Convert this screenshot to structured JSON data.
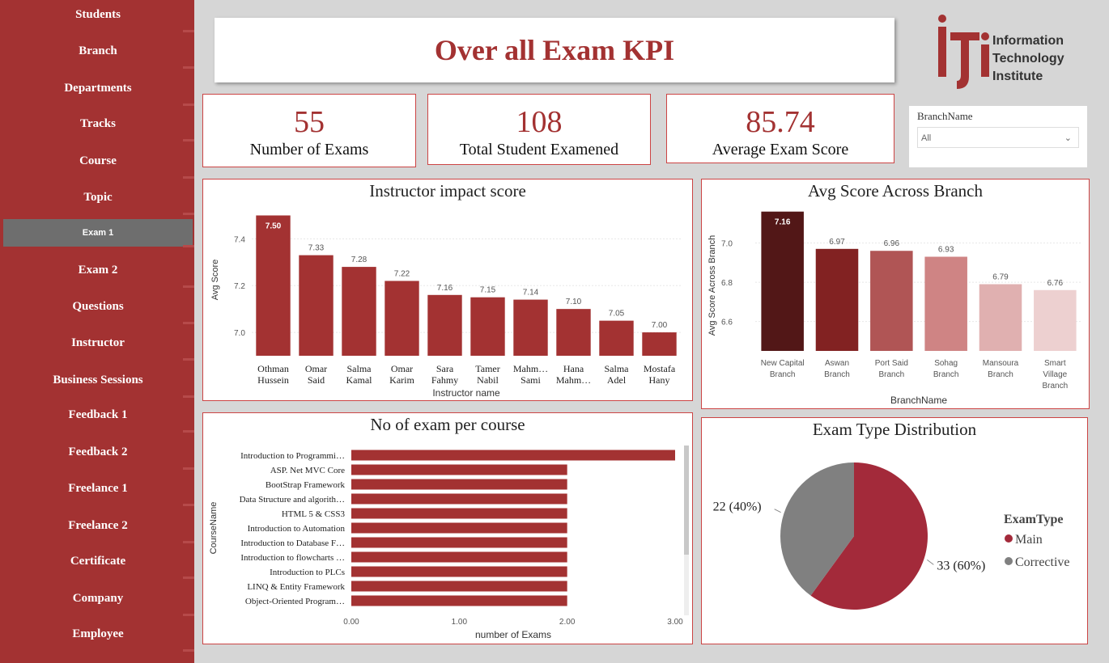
{
  "sidebar": {
    "items": [
      {
        "label": "Students",
        "active": false
      },
      {
        "label": "Branch",
        "active": false
      },
      {
        "label": "Departments",
        "active": false
      },
      {
        "label": "Tracks",
        "active": false
      },
      {
        "label": "Course",
        "active": false
      },
      {
        "label": "Topic",
        "active": false
      },
      {
        "label": "Exam 1",
        "active": true
      },
      {
        "label": "Exam 2",
        "active": false
      },
      {
        "label": "Questions",
        "active": false
      },
      {
        "label": "Instructor",
        "active": false
      },
      {
        "label": "Business Sessions",
        "active": false
      },
      {
        "label": "Feedback 1",
        "active": false
      },
      {
        "label": "Feedback 2",
        "active": false
      },
      {
        "label": "Freelance 1",
        "active": false
      },
      {
        "label": "Freelance 2",
        "active": false
      },
      {
        "label": "Certificate",
        "active": false
      },
      {
        "label": "Company",
        "active": false
      },
      {
        "label": "Employee",
        "active": false
      }
    ]
  },
  "header": {
    "title": "Over all Exam KPI"
  },
  "logo": {
    "line1": "Information",
    "line2": "Technology",
    "line3": "Institute",
    "mark": "iti"
  },
  "kpis": [
    {
      "value": "55",
      "label": "Number of Exams"
    },
    {
      "value": "108",
      "label": "Total Student Examened"
    },
    {
      "value": "85.74",
      "label": "Average Exam Score"
    }
  ],
  "slicer": {
    "label": "BranchName",
    "value": "All"
  },
  "colors": {
    "accent": "#a33232",
    "sidebar": "#a33232",
    "active": "#6e6e6e",
    "grey": "#808080"
  },
  "chart_data": [
    {
      "type": "bar",
      "title": "Instructor impact score",
      "xlabel": "Instructor name",
      "ylabel": "Avg Score",
      "ylim": [
        6.9,
        7.55
      ],
      "yticks": [
        "7.0",
        "7.2",
        "7.4"
      ],
      "ytick_values": [
        7.0,
        7.2,
        7.4
      ],
      "categories": [
        [
          "Othman",
          "Hussein"
        ],
        [
          "Omar",
          "Said"
        ],
        [
          "Salma",
          "Kamal"
        ],
        [
          "Omar",
          "Karim"
        ],
        [
          "Sara",
          "Fahmy"
        ],
        [
          "Tamer",
          "Nabil"
        ],
        [
          "Mahm…",
          "Sami"
        ],
        [
          "Hana",
          "Mahm…"
        ],
        [
          "Salma",
          "Adel"
        ],
        [
          "Mostafa",
          "Hany"
        ]
      ],
      "values": [
        7.5,
        7.33,
        7.28,
        7.22,
        7.16,
        7.15,
        7.14,
        7.1,
        7.05,
        7.0
      ],
      "labels": [
        "7.50",
        "7.33",
        "7.28",
        "7.22",
        "7.16",
        "7.15",
        "7.14",
        "7.10",
        "7.05",
        "7.00"
      ]
    },
    {
      "type": "bar",
      "title": "Avg Score Across Branch",
      "xlabel": "BranchName",
      "ylabel": "Avg Score Across Branch",
      "ylim": [
        6.45,
        7.2
      ],
      "yticks": [
        "6.6",
        "6.8",
        "7.0"
      ],
      "ytick_values": [
        6.6,
        6.8,
        7.0
      ],
      "categories": [
        [
          "New Capital",
          "Branch"
        ],
        [
          "Aswan",
          "Branch"
        ],
        [
          "Port Said",
          "Branch"
        ],
        [
          "Sohag",
          "Branch"
        ],
        [
          "Mansoura",
          "Branch"
        ],
        [
          "Smart",
          "Village",
          "Branch"
        ]
      ],
      "values": [
        7.16,
        6.97,
        6.96,
        6.93,
        6.79,
        6.76
      ],
      "labels": [
        "7.16",
        "6.97",
        "6.96",
        "6.93",
        "6.79",
        "6.76"
      ],
      "colors": [
        "#521717",
        "#822222",
        "#b05555",
        "#cf8484",
        "#e0b0b0",
        "#edd0d0"
      ]
    },
    {
      "type": "bar",
      "orientation": "horizontal",
      "title": "No of exam per course",
      "xlabel": "number of Exams",
      "ylabel": "CourseName",
      "xlim": [
        0,
        3
      ],
      "xticks": [
        "0.00",
        "1.00",
        "2.00",
        "3.00"
      ],
      "xtick_values": [
        0,
        1,
        2,
        3
      ],
      "categories": [
        "Introduction to Programmi…",
        "ASP. Net MVC Core",
        "BootStrap Framework",
        "Data Structure and algorith…",
        "HTML 5 & CSS3",
        "Introduction to Automation",
        "Introduction to Database F…",
        "Introduction to flowcharts …",
        "Introduction to PLCs",
        "LINQ & Entity Framework",
        "Object-Oriented Program…"
      ],
      "values": [
        3,
        2,
        2,
        2,
        2,
        2,
        2,
        2,
        2,
        2,
        2
      ]
    },
    {
      "type": "pie",
      "title": "Exam Type Distribution",
      "legend_title": "ExamType",
      "legend_position": "right",
      "slices": [
        {
          "name": "Main",
          "value": 33,
          "label": "33 (60%)",
          "color": "#a32a3a"
        },
        {
          "name": "Corrective",
          "value": 22,
          "label": "22 (40%)",
          "color": "#808080"
        }
      ]
    }
  ]
}
